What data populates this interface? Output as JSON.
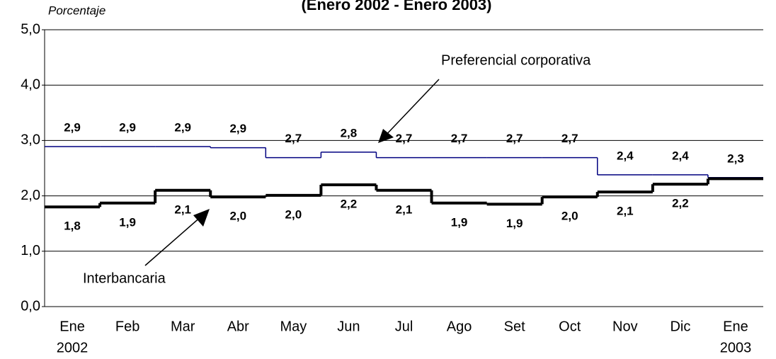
{
  "chart_data": {
    "type": "step",
    "title": "(Enero 2002 - Enero 2003)",
    "y_label": "Porcentaje",
    "categories": [
      "Ene",
      "Feb",
      "Mar",
      "Abr",
      "May",
      "Jun",
      "Jul",
      "Ago",
      "Set",
      "Oct",
      "Nov",
      "Dic",
      "Ene"
    ],
    "category_years": [
      "2002",
      null,
      null,
      null,
      null,
      null,
      null,
      null,
      null,
      null,
      null,
      null,
      "2003"
    ],
    "series": [
      {
        "name": "Preferencial corporativa",
        "color": "#000080",
        "values": [
          2.89,
          2.89,
          2.89,
          2.87,
          2.69,
          2.79,
          2.69,
          2.69,
          2.69,
          2.69,
          2.38,
          2.38,
          2.33
        ],
        "value_labels": [
          "2,9",
          "2,9",
          "2,9",
          "2,9",
          "2,7",
          "2,8",
          "2,7",
          "2,7",
          "2,7",
          "2,7",
          "2,4",
          "2,4",
          "2,3"
        ]
      },
      {
        "name": "Interbancaria",
        "color": "#000000",
        "values": [
          1.8,
          1.87,
          2.1,
          1.98,
          2.01,
          2.2,
          2.1,
          1.87,
          1.85,
          1.98,
          2.07,
          2.21,
          2.31
        ],
        "value_labels": [
          "1,8",
          "1,9",
          "2,1",
          "2,0",
          "2,0",
          "2,2",
          "2,1",
          "1,9",
          "1,9",
          "2,0",
          "2,1",
          "2,2",
          null
        ]
      }
    ],
    "ylim": [
      0,
      5
    ],
    "yticks": [
      {
        "value": 0,
        "label": "0,0"
      },
      {
        "value": 1,
        "label": "1,0"
      },
      {
        "value": 2,
        "label": "2,0"
      },
      {
        "value": 3,
        "label": "3,0"
      },
      {
        "value": 4,
        "label": "4,0"
      },
      {
        "value": 5,
        "label": "5,0"
      }
    ],
    "grid": true
  }
}
